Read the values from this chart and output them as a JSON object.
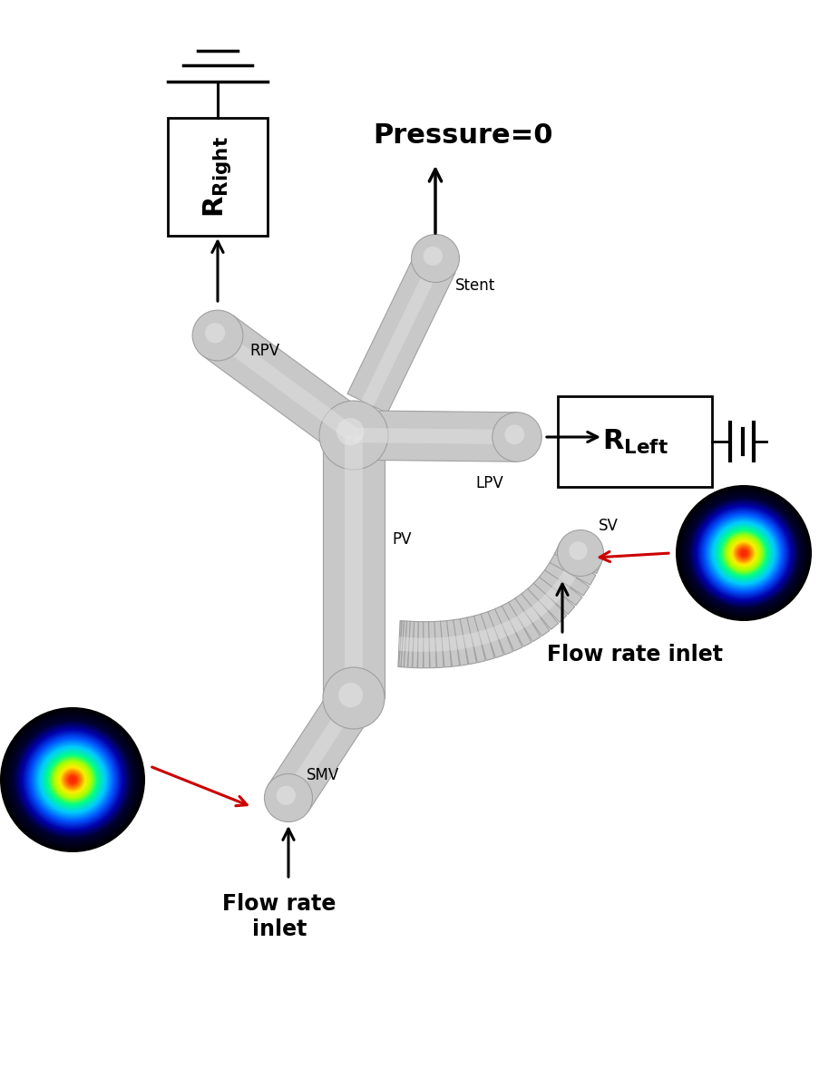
{
  "bg_color": "#ffffff",
  "vessel_color": "#c8c8c8",
  "vessel_shadow_color": "#a0a0a0",
  "arrow_color": "#000000",
  "red_arrow_color": "#cc0000",
  "pressure_label": "Pressure=0",
  "stent_label": "Stent",
  "rpv_label": "RPV",
  "lpv_label": "LPV",
  "pv_label": "PV",
  "sv_label": "SV",
  "smv_label": "SMV",
  "flow_rate_label_left": "Flow rate\ninlet",
  "flow_rate_label_right": "Flow rate inlet",
  "label_fontsize": 12,
  "bold_label_fontsize": 17
}
